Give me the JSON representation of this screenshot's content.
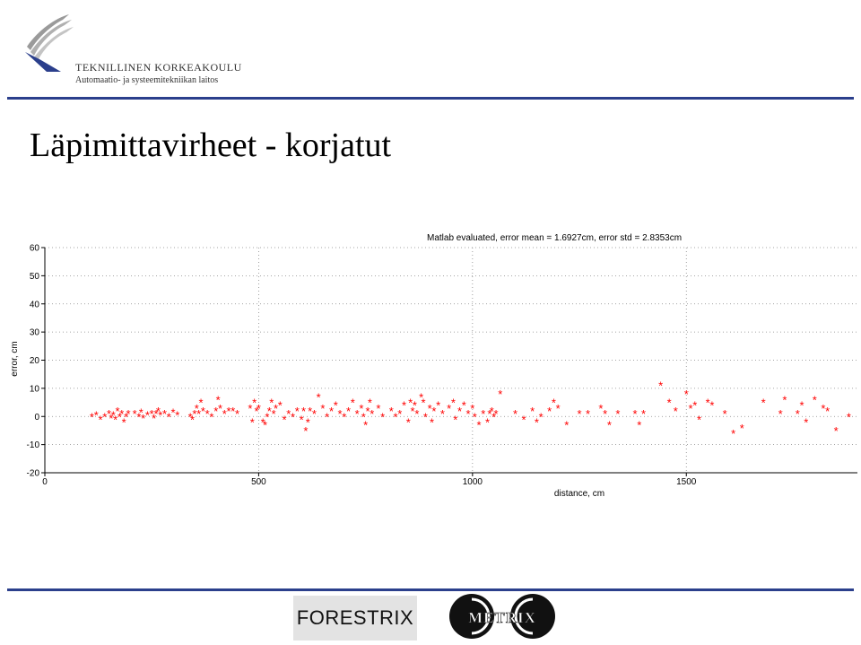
{
  "header": {
    "org_name": "TEKNILLINEN KORKEAKOULU",
    "org_dept": "Automaatio- ja systeemitekniikan laitos",
    "logo_icon": "tkk-wing-logo-icon"
  },
  "slide": {
    "title": "Läpimittavirheet - korjatut"
  },
  "footer": {
    "forestrix_label": "FORESTRIX",
    "metrix_label": "METRIX",
    "metrix_icon": "metrix-logo-icon"
  },
  "chart_data": {
    "type": "scatter",
    "title": "Matlab evaluated, error mean = 1.6927cm, error std = 2.8353cm",
    "xlabel": "distance, cm",
    "ylabel": "error, cm",
    "xlim": [
      0,
      1900
    ],
    "ylim": [
      -20,
      60
    ],
    "xticks": [
      0,
      500,
      1000,
      1500
    ],
    "yticks": [
      -20,
      -10,
      0,
      10,
      20,
      30,
      40,
      50,
      60
    ],
    "grid": true,
    "marker": "*",
    "color": "#ff0000",
    "series": [
      {
        "points": [
          [
            110,
            0
          ],
          [
            120,
            0.5
          ],
          [
            130,
            -1
          ],
          [
            140,
            0
          ],
          [
            150,
            1
          ],
          [
            155,
            -0.5
          ],
          [
            160,
            0.5
          ],
          [
            165,
            -1
          ],
          [
            170,
            2
          ],
          [
            175,
            0
          ],
          [
            180,
            1
          ],
          [
            185,
            -2
          ],
          [
            190,
            0
          ],
          [
            195,
            1
          ],
          [
            210,
            1
          ],
          [
            220,
            0
          ],
          [
            225,
            1.5
          ],
          [
            230,
            -0.5
          ],
          [
            240,
            0.5
          ],
          [
            250,
            1
          ],
          [
            255,
            -0.5
          ],
          [
            260,
            1
          ],
          [
            265,
            2
          ],
          [
            270,
            0.5
          ],
          [
            280,
            1
          ],
          [
            290,
            0
          ],
          [
            300,
            1.5
          ],
          [
            310,
            0.5
          ],
          [
            340,
            0
          ],
          [
            345,
            -1
          ],
          [
            350,
            1
          ],
          [
            355,
            3
          ],
          [
            360,
            1
          ],
          [
            365,
            5
          ],
          [
            370,
            2
          ],
          [
            380,
            1
          ],
          [
            390,
            0
          ],
          [
            400,
            2
          ],
          [
            405,
            6
          ],
          [
            410,
            3
          ],
          [
            420,
            1
          ],
          [
            430,
            2
          ],
          [
            440,
            2
          ],
          [
            450,
            1
          ],
          [
            480,
            3
          ],
          [
            485,
            -2
          ],
          [
            490,
            5
          ],
          [
            495,
            2
          ],
          [
            500,
            3
          ],
          [
            510,
            -2
          ],
          [
            515,
            -3
          ],
          [
            520,
            0
          ],
          [
            525,
            2
          ],
          [
            530,
            5
          ],
          [
            535,
            1
          ],
          [
            540,
            3
          ],
          [
            550,
            4
          ],
          [
            560,
            -1
          ],
          [
            570,
            1
          ],
          [
            580,
            0
          ],
          [
            590,
            2
          ],
          [
            600,
            -1
          ],
          [
            605,
            2
          ],
          [
            610,
            -5
          ],
          [
            615,
            -2
          ],
          [
            620,
            2
          ],
          [
            630,
            1
          ],
          [
            640,
            7
          ],
          [
            650,
            3
          ],
          [
            660,
            0
          ],
          [
            670,
            2
          ],
          [
            680,
            4
          ],
          [
            690,
            1
          ],
          [
            700,
            0
          ],
          [
            710,
            2
          ],
          [
            720,
            5
          ],
          [
            730,
            1
          ],
          [
            740,
            3
          ],
          [
            745,
            0
          ],
          [
            750,
            -3
          ],
          [
            755,
            2
          ],
          [
            760,
            5
          ],
          [
            765,
            1
          ],
          [
            780,
            3
          ],
          [
            790,
            0
          ],
          [
            810,
            2
          ],
          [
            820,
            0
          ],
          [
            830,
            1
          ],
          [
            840,
            4
          ],
          [
            850,
            -2
          ],
          [
            855,
            5
          ],
          [
            860,
            2
          ],
          [
            865,
            4
          ],
          [
            870,
            1
          ],
          [
            880,
            7
          ],
          [
            885,
            5
          ],
          [
            890,
            0
          ],
          [
            900,
            3
          ],
          [
            905,
            -2
          ],
          [
            910,
            2
          ],
          [
            920,
            4
          ],
          [
            930,
            1
          ],
          [
            945,
            3
          ],
          [
            955,
            5
          ],
          [
            960,
            -1
          ],
          [
            970,
            2
          ],
          [
            980,
            4
          ],
          [
            990,
            1
          ],
          [
            1000,
            3
          ],
          [
            1005,
            0
          ],
          [
            1015,
            -3
          ],
          [
            1025,
            1
          ],
          [
            1035,
            -2
          ],
          [
            1040,
            1
          ],
          [
            1045,
            2
          ],
          [
            1050,
            0
          ],
          [
            1055,
            1
          ],
          [
            1065,
            8
          ],
          [
            1100,
            1
          ],
          [
            1120,
            -1
          ],
          [
            1140,
            2
          ],
          [
            1150,
            -2
          ],
          [
            1160,
            0
          ],
          [
            1180,
            2
          ],
          [
            1190,
            5
          ],
          [
            1200,
            3
          ],
          [
            1220,
            -3
          ],
          [
            1250,
            1
          ],
          [
            1270,
            1
          ],
          [
            1300,
            3
          ],
          [
            1310,
            1
          ],
          [
            1320,
            -3
          ],
          [
            1340,
            1
          ],
          [
            1380,
            1
          ],
          [
            1390,
            -3
          ],
          [
            1400,
            1
          ],
          [
            1440,
            11
          ],
          [
            1460,
            5
          ],
          [
            1475,
            2
          ],
          [
            1500,
            8
          ],
          [
            1510,
            3
          ],
          [
            1520,
            4
          ],
          [
            1530,
            -1
          ],
          [
            1550,
            5
          ],
          [
            1560,
            4
          ],
          [
            1590,
            1
          ],
          [
            1610,
            -6
          ],
          [
            1630,
            -4
          ],
          [
            1680,
            5
          ],
          [
            1720,
            1
          ],
          [
            1730,
            6
          ],
          [
            1760,
            1
          ],
          [
            1770,
            4
          ],
          [
            1780,
            -2
          ],
          [
            1800,
            6
          ],
          [
            1820,
            3
          ],
          [
            1830,
            2
          ],
          [
            1850,
            -5
          ],
          [
            1880,
            0
          ]
        ]
      }
    ]
  }
}
